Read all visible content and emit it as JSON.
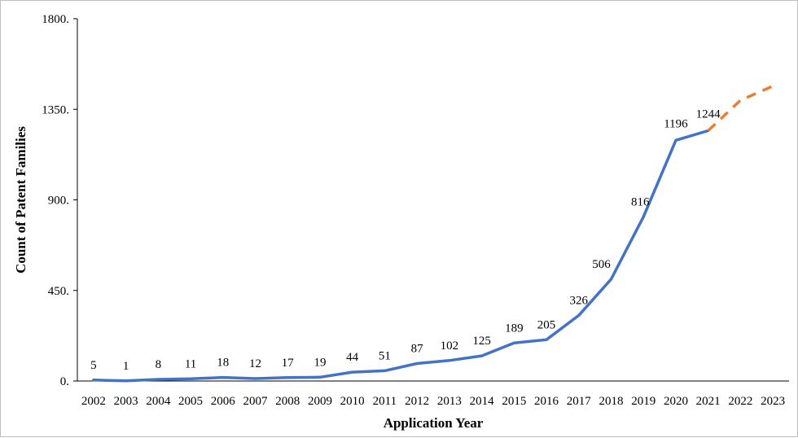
{
  "chart_data": {
    "type": "line",
    "xlabel": "Application Year",
    "ylabel": "Count of Patent Families",
    "ylim": [
      0,
      1800
    ],
    "yticks": [
      "0.",
      "450.",
      "900.",
      "1350.",
      "1800."
    ],
    "ytick_values": [
      0,
      450,
      900,
      1350,
      1800
    ],
    "categories": [
      "2002",
      "2003",
      "2004",
      "2005",
      "2006",
      "2007",
      "2008",
      "2009",
      "2010",
      "2011",
      "2012",
      "2013",
      "2014",
      "2015",
      "2016",
      "2017",
      "2018",
      "2019",
      "2020",
      "2021",
      "2022",
      "2023"
    ],
    "series": [
      {
        "style": "solid",
        "color": "#4472C4",
        "x": [
          "2002",
          "2003",
          "2004",
          "2005",
          "2006",
          "2007",
          "2008",
          "2009",
          "2010",
          "2011",
          "2012",
          "2013",
          "2014",
          "2015",
          "2016",
          "2017",
          "2018",
          "2019",
          "2020",
          "2021"
        ],
        "values": [
          5,
          1,
          8,
          11,
          18,
          12,
          17,
          19,
          44,
          51,
          87,
          102,
          125,
          189,
          205,
          326,
          506,
          816,
          1196,
          1244
        ],
        "labels": [
          "5",
          "1",
          "8",
          "11",
          "18",
          "12",
          "17",
          "19",
          "44",
          "51",
          "87",
          "102",
          "125",
          "189",
          "205",
          "326",
          "506",
          "816",
          "1196",
          "1244"
        ]
      },
      {
        "style": "dashed",
        "color": "#ED7D31",
        "x": [
          "2021",
          "2022",
          "2023"
        ],
        "values": [
          1244,
          1395,
          1465
        ]
      }
    ],
    "grid": false,
    "legend": "none"
  }
}
